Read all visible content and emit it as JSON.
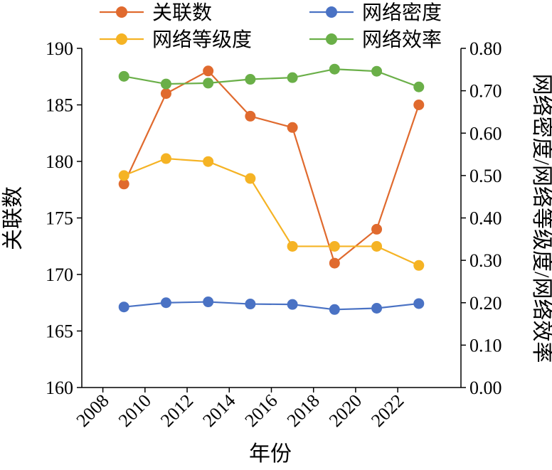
{
  "chart_data": {
    "type": "line",
    "categories": [
      2009,
      2011,
      2013,
      2015,
      2017,
      2019,
      2021,
      2023
    ],
    "x_tick_labels": [
      "2008",
      "2010",
      "2012",
      "2014",
      "2016",
      "2018",
      "2020",
      "2022"
    ],
    "x_range": [
      2007,
      2025
    ],
    "xlabel": "年份",
    "ylabel_left": "关联数",
    "ylabel_right": "网络密度/网络等级度/网络效率",
    "ylim_left": [
      160,
      190
    ],
    "ylim_right": [
      0.0,
      0.8
    ],
    "y_ticks_left": [
      "160",
      "165",
      "170",
      "175",
      "180",
      "185",
      "190"
    ],
    "y_ticks_right": [
      "0.00",
      "0.10",
      "0.20",
      "0.30",
      "0.40",
      "0.50",
      "0.60",
      "0.70",
      "0.80"
    ],
    "grid": false,
    "legend_position": "top",
    "series": [
      {
        "name": "关联数",
        "axis": "left",
        "color": "#E06A2E",
        "values": [
          178,
          186,
          188,
          184,
          183,
          171,
          174,
          185
        ]
      },
      {
        "name": "网络密度",
        "axis": "right",
        "color": "#4A72C4",
        "values": [
          0.19,
          0.2,
          0.202,
          0.197,
          0.196,
          0.184,
          0.187,
          0.198
        ]
      },
      {
        "name": "网络等级度",
        "axis": "right",
        "color": "#F5B324",
        "values": [
          0.5,
          0.54,
          0.533,
          0.493,
          0.333,
          0.333,
          0.333,
          0.288
        ]
      },
      {
        "name": "网络效率",
        "axis": "right",
        "color": "#6AAF48",
        "values": [
          0.734,
          0.716,
          0.718,
          0.727,
          0.731,
          0.751,
          0.746,
          0.709
        ]
      }
    ]
  }
}
